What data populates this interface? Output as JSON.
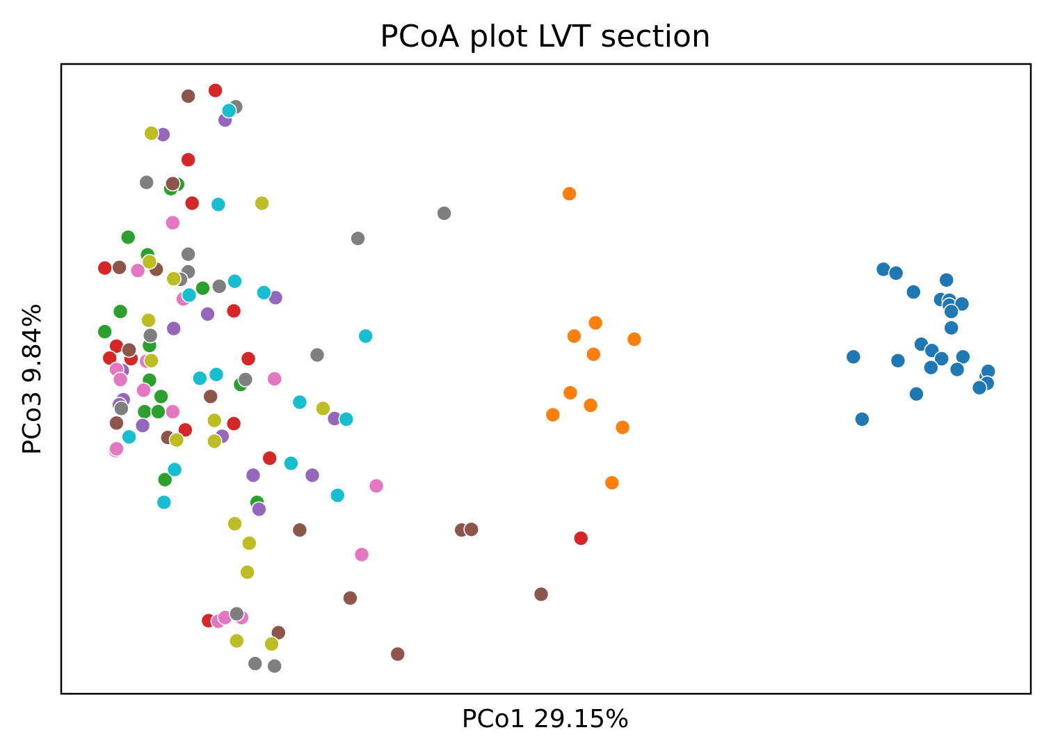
{
  "chart_data": {
    "type": "scatter",
    "title": "PCoA plot LVT section",
    "xlabel": "PCo1 29.15%",
    "ylabel": "PCo3 9.84%",
    "xlim": [
      0,
      100
    ],
    "ylim": [
      0,
      100
    ],
    "show_ticks": false,
    "grid": false,
    "legend": "none",
    "series": [
      {
        "color": "#1f77b4",
        "points": [
          [
            84.8,
            67.4
          ],
          [
            86.1,
            66.8
          ],
          [
            87.9,
            63.8
          ],
          [
            91.3,
            65.7
          ],
          [
            90.7,
            62.6
          ],
          [
            91.6,
            62.5
          ],
          [
            91.6,
            61.7
          ],
          [
            92.9,
            61.9
          ],
          [
            91.8,
            60.7
          ],
          [
            91.8,
            58.1
          ],
          [
            88.7,
            55.5
          ],
          [
            89.8,
            54.5
          ],
          [
            90.8,
            53.2
          ],
          [
            81.7,
            53.5
          ],
          [
            86.3,
            52.9
          ],
          [
            93.0,
            53.5
          ],
          [
            89.7,
            51.8
          ],
          [
            92.4,
            51.5
          ],
          [
            95.4,
            50.4
          ],
          [
            95.6,
            51.2
          ],
          [
            95.5,
            49.3
          ],
          [
            94.7,
            48.6
          ],
          [
            88.2,
            47.6
          ],
          [
            82.6,
            43.6
          ]
        ]
      },
      {
        "color": "#ff7f0e",
        "points": [
          [
            52.4,
            79.4
          ],
          [
            55.1,
            58.9
          ],
          [
            52.9,
            56.8
          ],
          [
            59.1,
            56.3
          ],
          [
            54.9,
            53.9
          ],
          [
            52.5,
            47.8
          ],
          [
            54.6,
            45.8
          ],
          [
            50.7,
            44.3
          ],
          [
            57.9,
            42.3
          ],
          [
            56.8,
            33.5
          ]
        ]
      },
      {
        "color": "#2ca02c",
        "points": [
          [
            12.0,
            80.9
          ],
          [
            11.3,
            80.2
          ],
          [
            6.9,
            72.5
          ],
          [
            8.9,
            69.7
          ],
          [
            14.6,
            64.4
          ],
          [
            6.1,
            60.7
          ],
          [
            4.5,
            57.5
          ],
          [
            9.1,
            55.3
          ],
          [
            9.1,
            49.8
          ],
          [
            10.3,
            47.2
          ],
          [
            8.6,
            44.8
          ],
          [
            10.0,
            44.8
          ],
          [
            18.5,
            49.1
          ],
          [
            10.7,
            34.0
          ],
          [
            20.2,
            30.4
          ]
        ]
      },
      {
        "color": "#d62728",
        "points": [
          [
            15.9,
            95.8
          ],
          [
            13.1,
            84.8
          ],
          [
            13.5,
            77.9
          ],
          [
            4.5,
            67.6
          ],
          [
            17.8,
            60.8
          ],
          [
            5.7,
            55.2
          ],
          [
            5.0,
            53.3
          ],
          [
            7.2,
            53.2
          ],
          [
            19.3,
            53.2
          ],
          [
            12.8,
            41.9
          ],
          [
            17.8,
            42.9
          ],
          [
            21.5,
            37.4
          ],
          [
            15.2,
            11.6
          ],
          [
            53.6,
            24.7
          ]
        ]
      },
      {
        "color": "#9467bd",
        "points": [
          [
            10.5,
            88.8
          ],
          [
            16.9,
            91.1
          ],
          [
            20.7,
            77.9
          ],
          [
            22.1,
            62.9
          ],
          [
            11.6,
            58.0
          ],
          [
            15.1,
            60.3
          ],
          [
            6.3,
            51.3
          ],
          [
            6.4,
            46.7
          ],
          [
            6.0,
            45.9
          ],
          [
            8.4,
            42.6
          ],
          [
            16.6,
            40.9
          ],
          [
            28.2,
            43.7
          ],
          [
            19.8,
            34.7
          ],
          [
            25.9,
            34.7
          ],
          [
            20.4,
            29.3
          ]
        ]
      },
      {
        "color": "#8c564b",
        "points": [
          [
            13.1,
            94.9
          ],
          [
            11.5,
            81.0
          ],
          [
            6.0,
            67.7
          ],
          [
            9.8,
            67.4
          ],
          [
            7.0,
            54.6
          ],
          [
            15.4,
            47.2
          ],
          [
            5.7,
            43.0
          ],
          [
            11.0,
            40.7
          ],
          [
            24.6,
            26.0
          ],
          [
            41.3,
            26.0
          ],
          [
            42.3,
            26.1
          ],
          [
            29.8,
            15.2
          ],
          [
            49.5,
            15.8
          ],
          [
            22.4,
            9.7
          ],
          [
            34.7,
            6.3
          ]
        ]
      },
      {
        "color": "#e377c2",
        "points": [
          [
            11.5,
            74.8
          ],
          [
            7.9,
            67.2
          ],
          [
            12.6,
            62.7
          ],
          [
            8.8,
            52.8
          ],
          [
            5.7,
            51.5
          ],
          [
            6.1,
            49.9
          ],
          [
            8.5,
            48.2
          ],
          [
            11.5,
            44.8
          ],
          [
            22.0,
            50.0
          ],
          [
            5.6,
            38.6
          ],
          [
            5.7,
            38.9
          ],
          [
            32.5,
            33.0
          ],
          [
            31.0,
            22.1
          ],
          [
            16.2,
            11.5
          ],
          [
            16.9,
            12.1
          ],
          [
            18.6,
            12.1
          ]
        ]
      },
      {
        "color": "#7f7f7f",
        "points": [
          [
            18.0,
            93.2
          ],
          [
            8.8,
            81.2
          ],
          [
            13.1,
            69.8
          ],
          [
            13.1,
            67.0
          ],
          [
            30.6,
            72.3
          ],
          [
            39.5,
            76.3
          ],
          [
            12.3,
            65.8
          ],
          [
            16.3,
            64.7
          ],
          [
            9.2,
            56.9
          ],
          [
            26.4,
            53.8
          ],
          [
            19.0,
            49.9
          ],
          [
            6.2,
            45.3
          ],
          [
            18.1,
            12.7
          ],
          [
            20.0,
            4.8
          ],
          [
            22.0,
            4.4
          ]
        ]
      },
      {
        "color": "#bcbd22",
        "points": [
          [
            9.3,
            89.0
          ],
          [
            20.7,
            77.9
          ],
          [
            9.1,
            68.6
          ],
          [
            11.6,
            65.9
          ],
          [
            9.0,
            59.3
          ],
          [
            9.3,
            52.9
          ],
          [
            27.0,
            45.3
          ],
          [
            15.8,
            43.4
          ],
          [
            11.9,
            40.3
          ],
          [
            15.8,
            40.1
          ],
          [
            17.9,
            27.0
          ],
          [
            19.4,
            23.9
          ],
          [
            19.2,
            19.3
          ],
          [
            18.1,
            8.4
          ],
          [
            21.7,
            7.9
          ]
        ]
      },
      {
        "color": "#17becf",
        "points": [
          [
            17.3,
            92.6
          ],
          [
            16.2,
            77.7
          ],
          [
            17.9,
            65.5
          ],
          [
            20.9,
            63.7
          ],
          [
            13.2,
            63.3
          ],
          [
            31.4,
            56.8
          ],
          [
            14.3,
            50.1
          ],
          [
            16.0,
            50.7
          ],
          [
            24.6,
            46.3
          ],
          [
            29.4,
            43.6
          ],
          [
            7.0,
            40.8
          ],
          [
            11.7,
            35.6
          ],
          [
            23.7,
            36.6
          ],
          [
            28.5,
            31.5
          ],
          [
            10.6,
            30.4
          ]
        ]
      }
    ]
  }
}
